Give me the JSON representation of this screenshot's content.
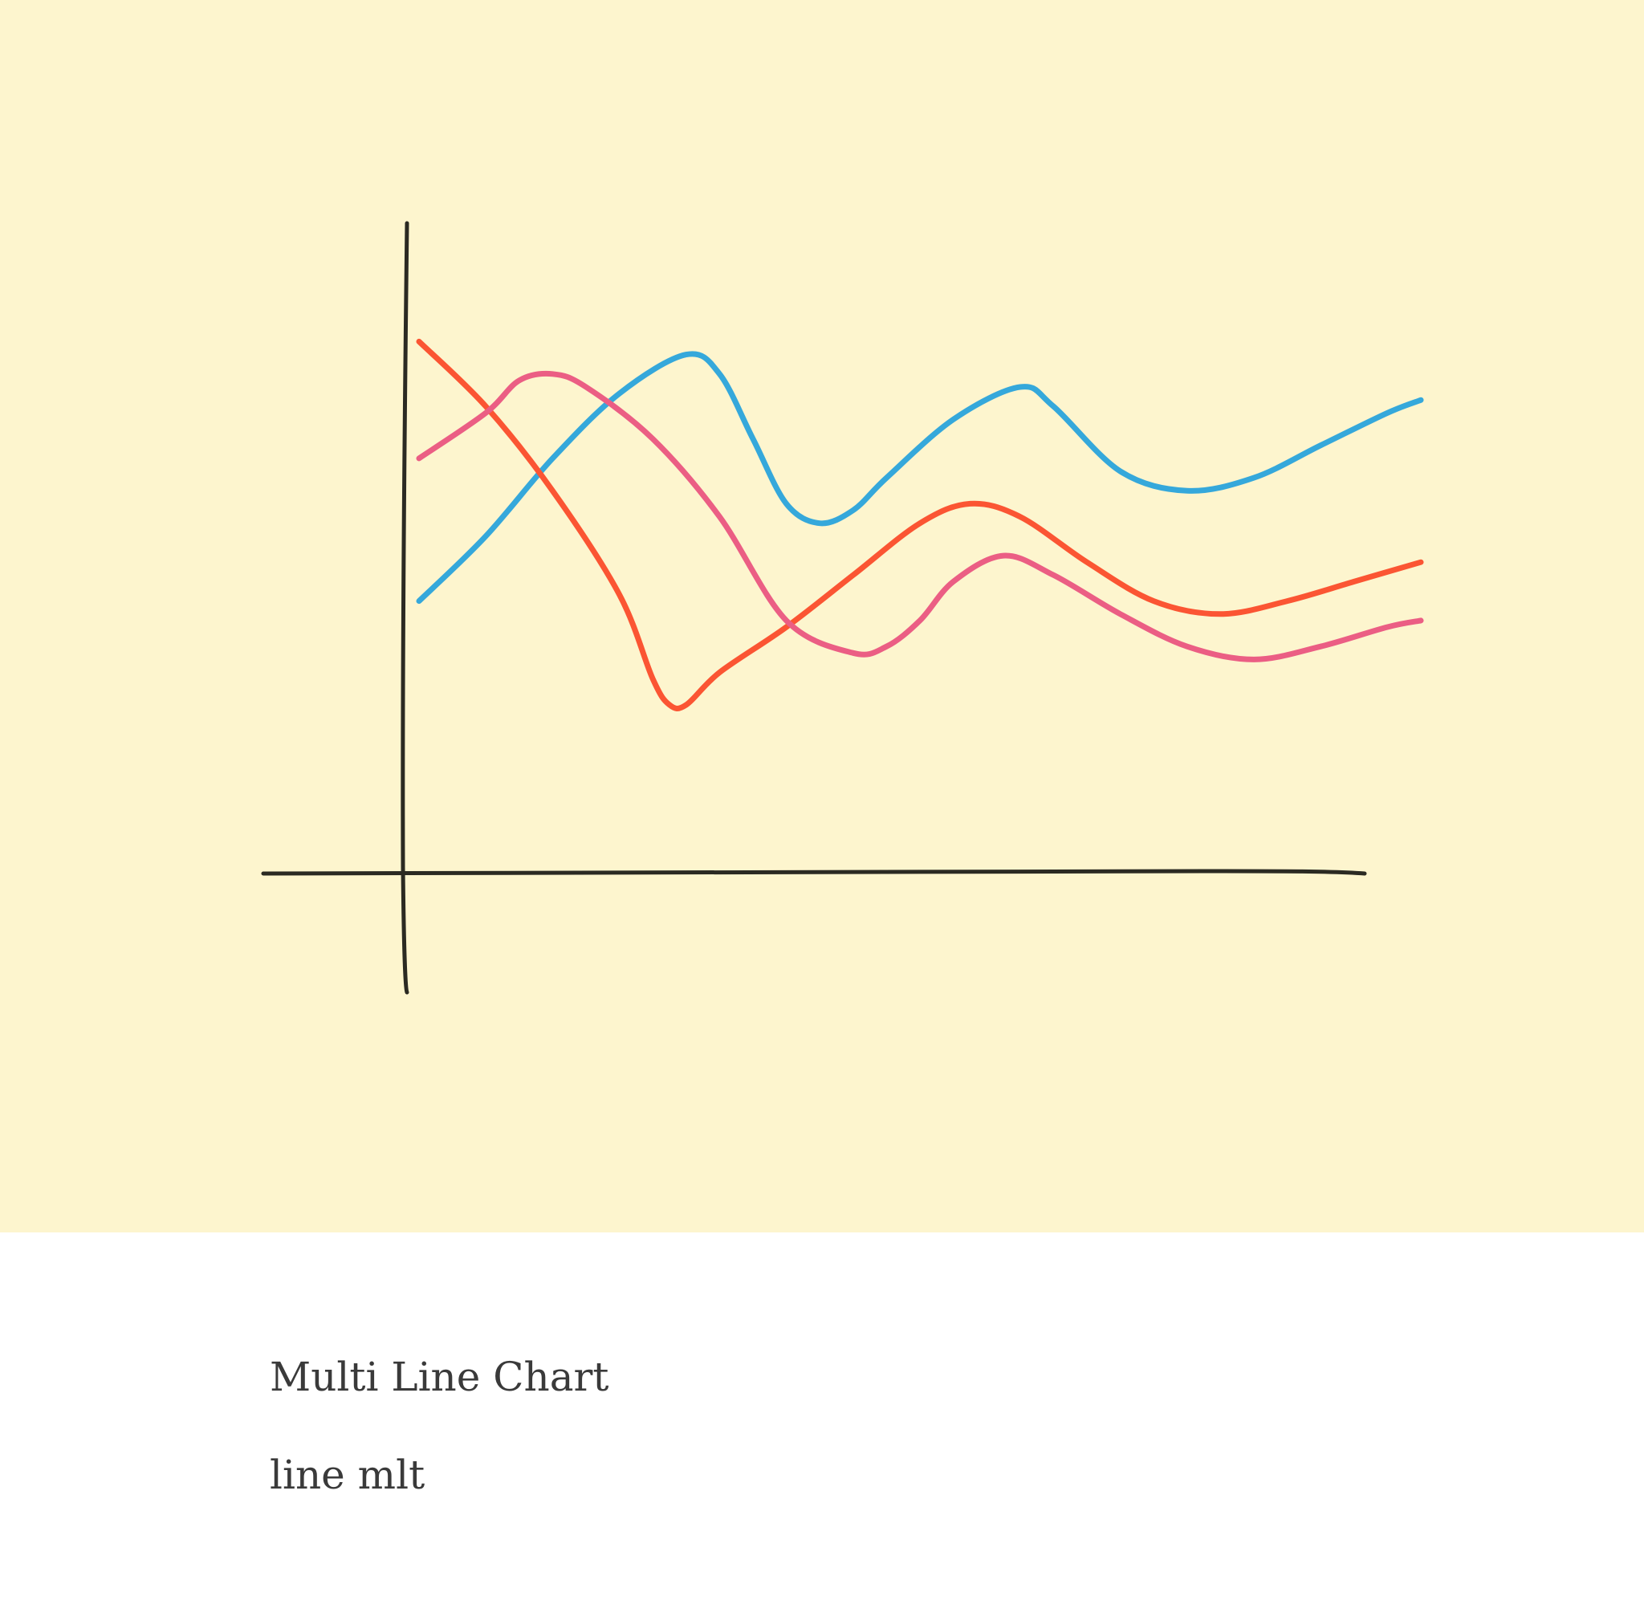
{
  "card": {
    "title": "Multi Line Chart",
    "subtitle": "line mlt",
    "background_color": "#FDF5CE",
    "caption_color": "#3A3A3A",
    "axis_color": "#2B2A22"
  },
  "chart_data": {
    "type": "line",
    "style": "hand-drawn",
    "grid": false,
    "legend": "none",
    "xlim": [
      0,
      30
    ],
    "ylim": [
      0,
      100
    ],
    "series": [
      {
        "color": "#35A8DB",
        "points": [
          [
            0,
            42
          ],
          [
            2,
            52
          ],
          [
            4,
            64
          ],
          [
            6,
            74
          ],
          [
            8,
            80
          ],
          [
            9,
            77
          ],
          [
            10,
            67
          ],
          [
            11,
            57
          ],
          [
            12,
            54
          ],
          [
            13,
            56
          ],
          [
            14,
            61
          ],
          [
            16,
            70
          ],
          [
            18,
            75
          ],
          [
            19,
            72
          ],
          [
            21,
            62
          ],
          [
            23,
            59
          ],
          [
            25,
            61
          ],
          [
            27,
            66
          ],
          [
            29,
            71
          ],
          [
            30,
            73
          ]
        ]
      },
      {
        "color": "#FB5533",
        "points": [
          [
            0,
            82
          ],
          [
            2,
            72
          ],
          [
            4,
            59
          ],
          [
            6,
            43
          ],
          [
            7,
            30
          ],
          [
            7.5,
            26
          ],
          [
            8,
            26
          ],
          [
            9,
            31
          ],
          [
            11,
            38
          ],
          [
            13,
            46
          ],
          [
            15,
            54
          ],
          [
            16.5,
            57
          ],
          [
            18,
            55
          ],
          [
            20,
            48
          ],
          [
            22,
            42
          ],
          [
            24,
            40
          ],
          [
            26,
            42
          ],
          [
            28,
            45
          ],
          [
            30,
            48
          ]
        ]
      },
      {
        "color": "#EB5E84",
        "points": [
          [
            0,
            64
          ],
          [
            2,
            71
          ],
          [
            3,
            76
          ],
          [
            4,
            77
          ],
          [
            5,
            75
          ],
          [
            7,
            67
          ],
          [
            9,
            55
          ],
          [
            11,
            39
          ],
          [
            13,
            34
          ],
          [
            14,
            35
          ],
          [
            15,
            39
          ],
          [
            16,
            45
          ],
          [
            17.5,
            49
          ],
          [
            19,
            46
          ],
          [
            21,
            40
          ],
          [
            23,
            35
          ],
          [
            25,
            33
          ],
          [
            27,
            35
          ],
          [
            29,
            38
          ],
          [
            30,
            39
          ]
        ]
      }
    ]
  }
}
